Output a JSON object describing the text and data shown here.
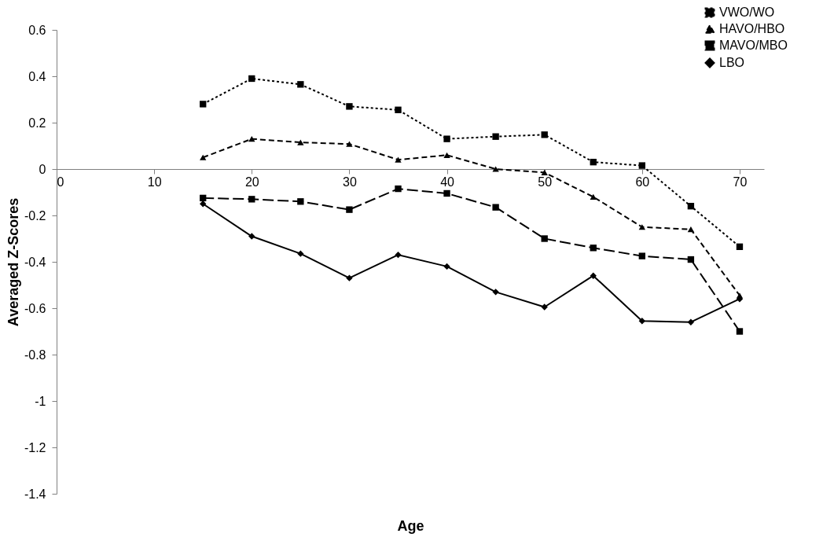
{
  "chart_data": {
    "type": "line",
    "xlabel": "Age",
    "ylabel": "Averaged Z-Scores",
    "x": [
      15,
      20,
      25,
      30,
      35,
      40,
      45,
      50,
      55,
      60,
      65,
      70
    ],
    "xlim": [
      0,
      72.5
    ],
    "xticks": [
      0,
      10,
      20,
      30,
      40,
      50,
      60,
      70
    ],
    "ylim": [
      -1.4,
      0.6
    ],
    "yticks": [
      -1.4,
      -1.2,
      -1,
      -0.8,
      -0.6,
      -0.4,
      -0.2,
      0,
      0.2,
      0.4,
      0.6
    ],
    "grid": false,
    "legend": "top right",
    "series": [
      {
        "name": "VWO/WO",
        "color": "#000000",
        "marker": "square",
        "line_style": "dotted",
        "values": [
          0.28,
          0.39,
          0.365,
          0.27,
          0.255,
          0.13,
          0.14,
          0.148,
          0.03,
          0.015,
          -0.16,
          -0.335
        ]
      },
      {
        "name": "HAVO/HBO",
        "color": "#000000",
        "marker": "triangle",
        "line_style": "dashed",
        "values": [
          0.05,
          0.13,
          0.115,
          0.108,
          0.04,
          0.06,
          0,
          -0.015,
          -0.12,
          -0.25,
          -0.26,
          -0.545
        ]
      },
      {
        "name": "MAVO/MBO",
        "color": "#000000",
        "marker": "square",
        "line_style": "longdash",
        "values": [
          -0.125,
          -0.13,
          -0.14,
          -0.175,
          -0.085,
          -0.105,
          -0.165,
          -0.3,
          -0.34,
          -0.375,
          -0.39,
          -0.7
        ]
      },
      {
        "name": "LBO",
        "color": "#000000",
        "marker": "diamond",
        "line_style": "solid",
        "values": [
          -0.15,
          -0.29,
          -0.365,
          -0.47,
          -0.37,
          -0.42,
          -0.53,
          -0.595,
          -0.46,
          -0.655,
          -0.66,
          -0.56
        ]
      }
    ]
  }
}
